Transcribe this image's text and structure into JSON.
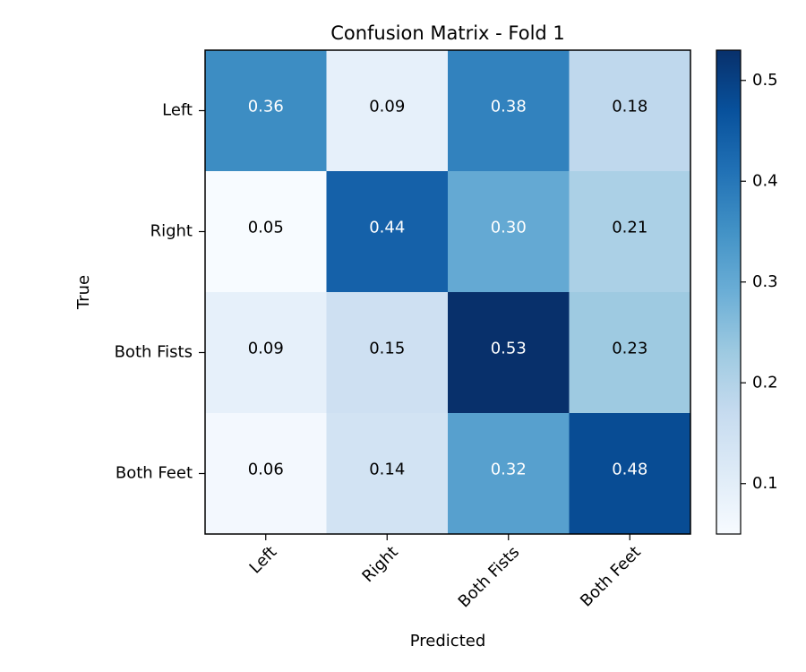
{
  "chart_data": {
    "type": "heatmap",
    "title": "Confusion Matrix - Fold 1",
    "xlabel": "Predicted",
    "ylabel": "True",
    "x_categories": [
      "Left",
      "Right",
      "Both Fists",
      "Both Feet"
    ],
    "y_categories": [
      "Left",
      "Right",
      "Both Fists",
      "Both Feet"
    ],
    "values": [
      [
        0.36,
        0.09,
        0.38,
        0.18
      ],
      [
        0.05,
        0.44,
        0.3,
        0.21
      ],
      [
        0.09,
        0.15,
        0.53,
        0.23
      ],
      [
        0.06,
        0.14,
        0.32,
        0.48
      ]
    ],
    "cell_labels": [
      [
        "0.36",
        "0.09",
        "0.38",
        "0.18"
      ],
      [
        "0.05",
        "0.44",
        "0.30",
        "0.21"
      ],
      [
        "0.09",
        "0.15",
        "0.53",
        "0.23"
      ],
      [
        "0.06",
        "0.14",
        "0.32",
        "0.48"
      ]
    ],
    "colormap": "Blues",
    "color_range": [
      0.05,
      0.53
    ],
    "colorbar_ticks": [
      0.1,
      0.2,
      0.3,
      0.4,
      0.5
    ],
    "colorbar_tick_labels": [
      "0.1",
      "0.2",
      "0.3",
      "0.4",
      "0.5"
    ],
    "x_tick_rotation": 45,
    "grid": false
  }
}
